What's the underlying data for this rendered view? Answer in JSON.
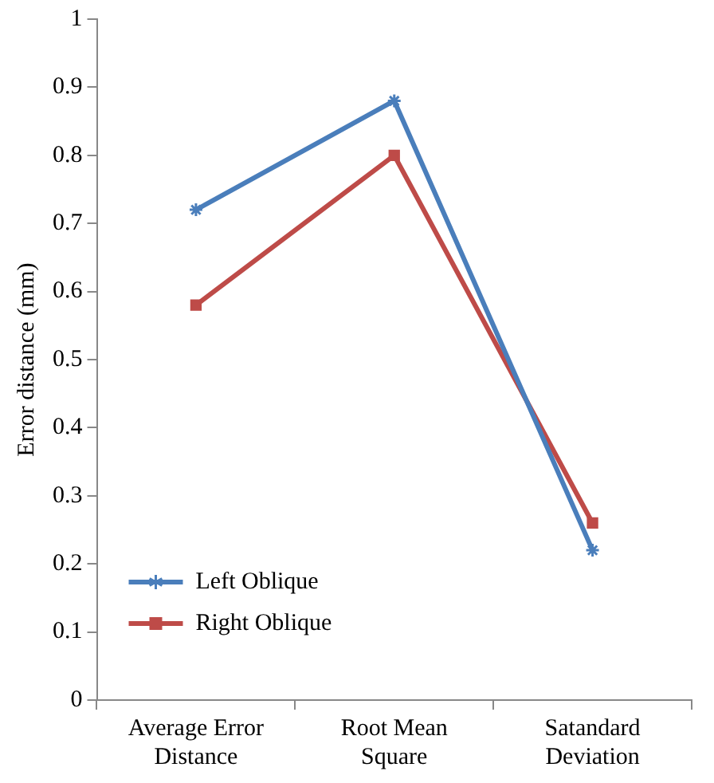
{
  "chart_data": {
    "type": "line",
    "ylabel": "Error distance (mm)",
    "categories": [
      "Average Error Distance",
      "Root Mean Square",
      "Satandard Deviation"
    ],
    "series": [
      {
        "name": "Left Oblique",
        "color": "#4a7ebb",
        "values": [
          0.72,
          0.88,
          0.22
        ],
        "marker": "cross"
      },
      {
        "name": "Right Oblique",
        "color": "#be4b48",
        "values": [
          0.58,
          0.8,
          0.26
        ],
        "marker": "square"
      }
    ],
    "ylim": [
      0,
      1
    ],
    "yticks": [
      0,
      0.1,
      0.2,
      0.3,
      0.4,
      0.5,
      0.6,
      0.7,
      0.8,
      0.9,
      1
    ],
    "grid": false,
    "legend": "bottom left"
  }
}
